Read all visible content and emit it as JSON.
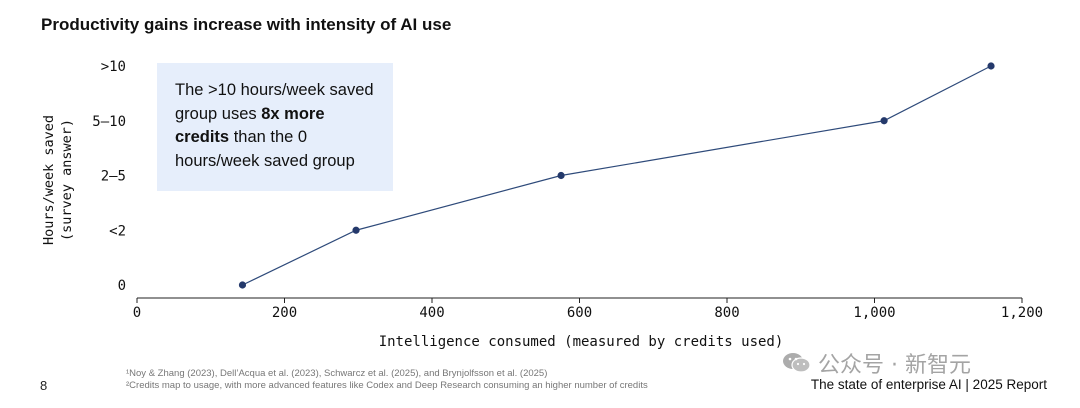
{
  "chart_data": {
    "type": "line",
    "title": "Productivity gains increase with intensity of AI use",
    "xlabel": "Intelligence consumed (measured by credits used)",
    "ylabel": [
      "Hours/week saved",
      "(survey answer)"
    ],
    "xlim": [
      0,
      1200
    ],
    "x_ticks": [
      0,
      200,
      400,
      600,
      800,
      1000,
      1200
    ],
    "x_tick_labels": [
      "0",
      "200",
      "400",
      "600",
      "800",
      "1,000",
      "1,200"
    ],
    "y_categories": [
      "0",
      "<2",
      "2–5",
      "5–10",
      ">10"
    ],
    "series": [
      {
        "x": [
          143,
          297,
          575,
          1013,
          1158
        ],
        "y": [
          "0",
          "<2",
          "2–5",
          "5–10",
          ">10"
        ]
      }
    ],
    "grid": false,
    "line_color": "#2e4a7a",
    "marker_color": "#24396b"
  },
  "callout": {
    "part1": "The >10 hours/week saved group uses ",
    "bold": "8x more credits",
    "part2": " than the 0 hours/week saved group"
  },
  "footnotes": [
    "¹Noy & Zhang (2023), Dell’Acqua et al. (2023), Schwarcz et al. (2025), and Brynjolfsson et al. (2025)",
    "²Credits map to usage, with more advanced features like Codex and Deep Research consuming an higher number of credits"
  ],
  "page_number": "8",
  "report_label": "The state of enterprise AI  |  2025 Report",
  "watermark": "公众号 · 新智元"
}
